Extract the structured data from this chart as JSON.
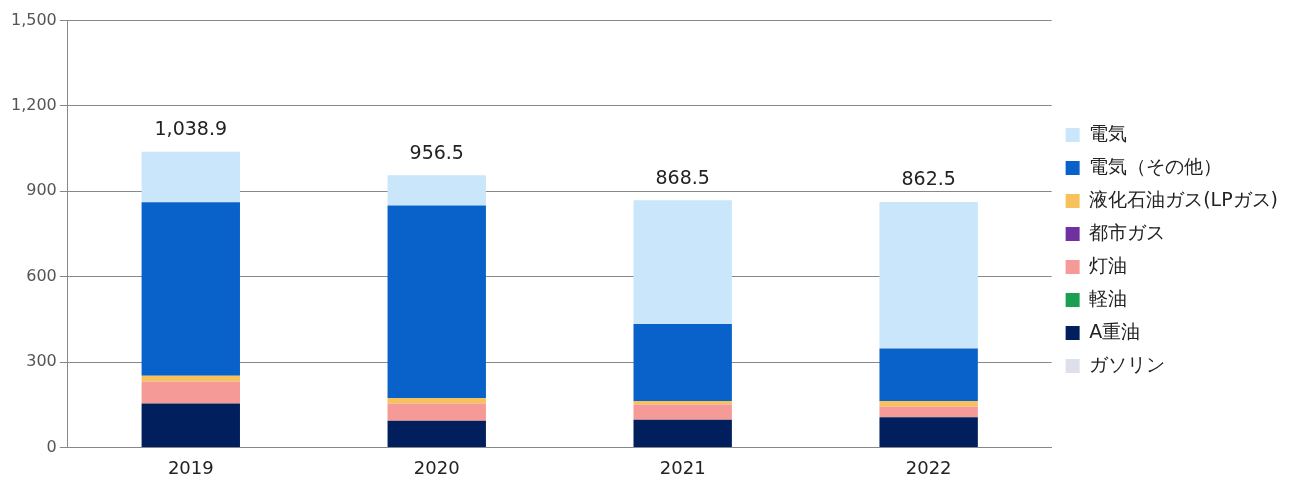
{
  "chart_data": {
    "type": "bar",
    "stacked": true,
    "categories": [
      "2019",
      "2020",
      "2021",
      "2022"
    ],
    "series": [
      {
        "name": "ガソリン",
        "color": "#dde0ea",
        "values": [
          0,
          0,
          0,
          0
        ]
      },
      {
        "name": "A重油",
        "color": "#001f5c",
        "values": [
          154,
          94,
          97,
          106
        ]
      },
      {
        "name": "軽油",
        "color": "#1aa050",
        "values": [
          0,
          0,
          0,
          0
        ]
      },
      {
        "name": "灯油",
        "color": "#f59a96",
        "values": [
          78,
          60,
          54,
          38
        ]
      },
      {
        "name": "都市ガス",
        "color": "#7030a0",
        "values": [
          0,
          0,
          0,
          0
        ]
      },
      {
        "name": "液化石油ガス(LPガス)",
        "color": "#f7c15b",
        "values": [
          20,
          20,
          12,
          19
        ]
      },
      {
        "name": "電気（その他）",
        "color": "#0862c9",
        "values": [
          610,
          676,
          271,
          185
        ]
      },
      {
        "name": "電気",
        "color": "#c9e6fa",
        "values": [
          176.9,
          106.5,
          434.5,
          514.5
        ]
      }
    ],
    "totals": [
      "1,038.9",
      "956.5",
      "868.5",
      "862.5"
    ],
    "ylim": [
      0,
      1500
    ],
    "yticks": [
      0,
      {
        "value": 300,
        "label": "300"
      },
      600,
      900,
      {
        "value": 1200,
        "label": "1,200"
      },
      {
        "value": 1500,
        "label": "1,500"
      }
    ],
    "grid": "y",
    "legend": "right"
  }
}
